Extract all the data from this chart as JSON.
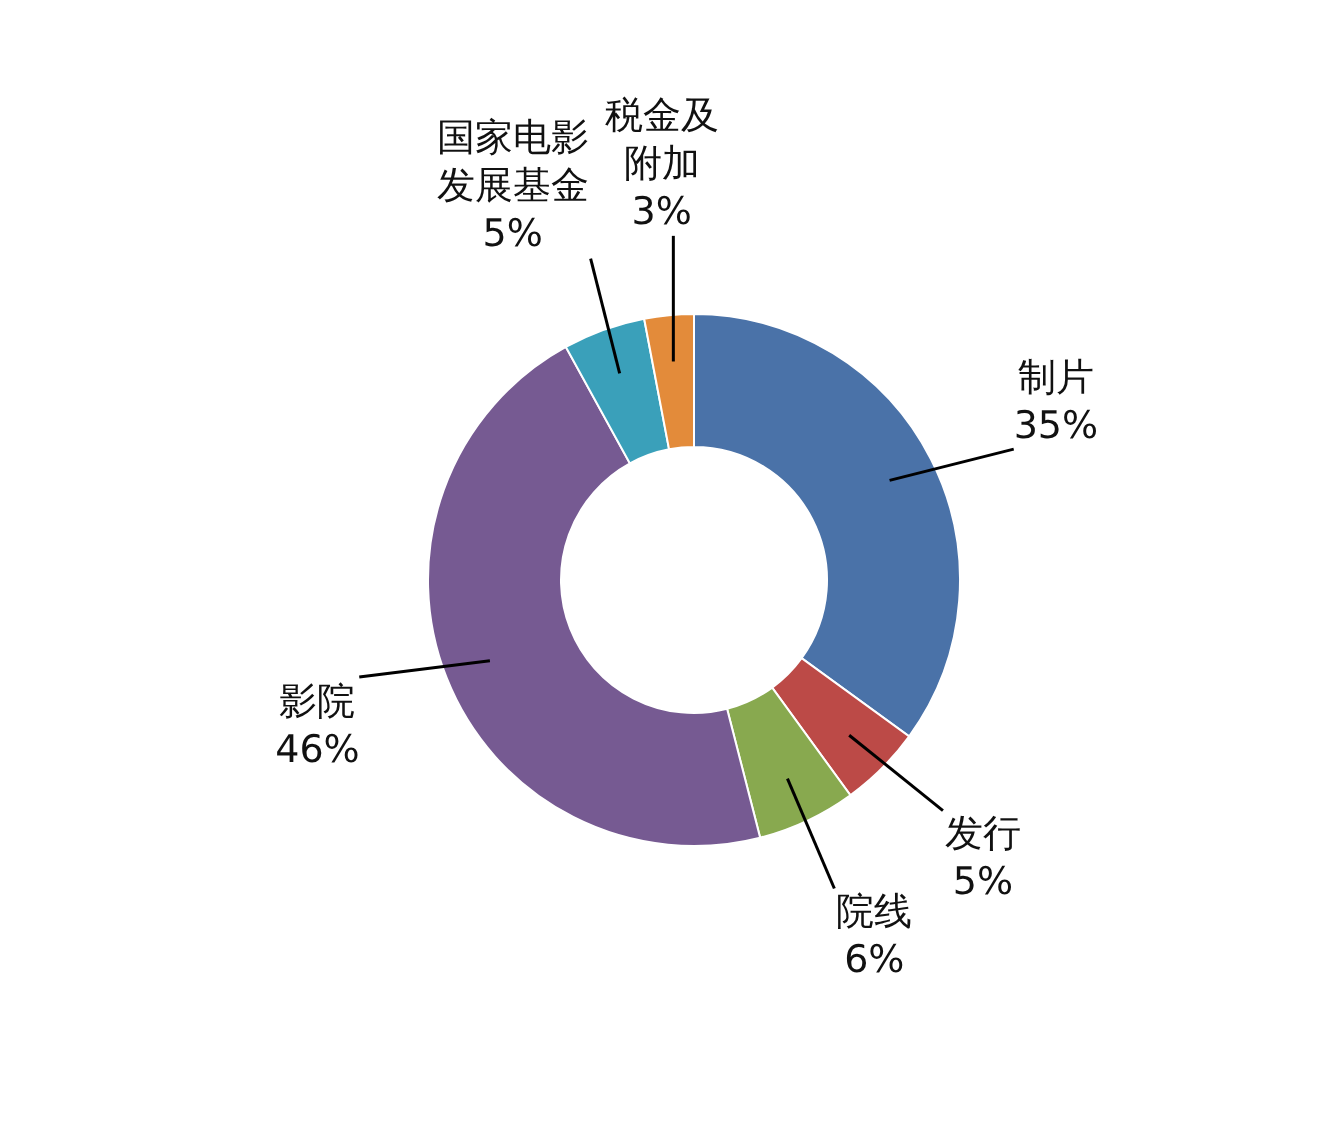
{
  "chart_data": {
    "type": "donut",
    "categories": [
      "制片",
      "发行",
      "院线",
      "影院",
      "国家电影发展基金",
      "税金及附加"
    ],
    "values": [
      35,
      5,
      6,
      46,
      5,
      3
    ],
    "colors": [
      "#4a72a8",
      "#bc4a47",
      "#88a94f",
      "#765a92",
      "#3aa0ba",
      "#e38b3a"
    ],
    "value_labels": [
      "35%",
      "5%",
      "6%",
      "46%",
      "5%",
      "3%"
    ]
  }
}
